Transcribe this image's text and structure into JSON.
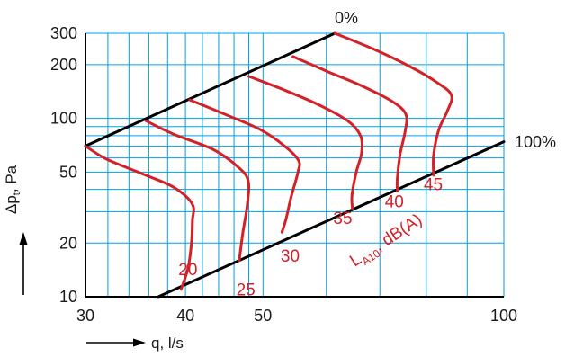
{
  "chart_data": {
    "type": "line",
    "title": "",
    "xlabel": "q, l/s",
    "ylabel_main": "Δp",
    "ylabel_sub": "t",
    "ylabel_unit": ", Pa",
    "log_x": true,
    "log_y": true,
    "xlim": [
      30,
      100
    ],
    "ylim": [
      10,
      300
    ],
    "grid": true,
    "x_ticks": [
      "30",
      "40",
      "50",
      "100"
    ],
    "x_tick_values": [
      30,
      40,
      50,
      100
    ],
    "y_ticks": [
      "10",
      "20",
      "50",
      "100",
      "200",
      "300"
    ],
    "y_tick_values": [
      10,
      20,
      50,
      100,
      200,
      300
    ],
    "x_grid": [
      30,
      32,
      34,
      36,
      38,
      40,
      42,
      44,
      46,
      48,
      50,
      60,
      70,
      80,
      90,
      100
    ],
    "y_grid": [
      10,
      20,
      30,
      40,
      50,
      60,
      70,
      80,
      90,
      100,
      200,
      300
    ],
    "boundaries": [
      {
        "label": "0%",
        "points": [
          [
            30,
            70
          ],
          [
            61.5,
            300
          ]
        ]
      },
      {
        "label": "100%",
        "points": [
          [
            37,
            10
          ],
          [
            100,
            74
          ]
        ]
      }
    ],
    "sound_label_main": "L",
    "sound_label_sub": "A10",
    "sound_label_rest": ", dB(A)",
    "series": [
      {
        "name": "20",
        "points": [
          [
            30,
            70
          ],
          [
            31.9,
            59
          ],
          [
            35.7,
            48
          ],
          [
            38.7,
            41
          ],
          [
            40.8,
            33
          ],
          [
            40.8,
            26.5
          ],
          [
            40.7,
            20
          ],
          [
            40.3,
            14.5
          ],
          [
            39.5,
            11
          ]
        ]
      },
      {
        "name": "25",
        "points": [
          [
            35.7,
            97
          ],
          [
            38.8,
            81
          ],
          [
            43.3,
            67
          ],
          [
            46.4,
            54
          ],
          [
            47.9,
            45
          ],
          [
            47.8,
            33
          ],
          [
            47.2,
            23
          ],
          [
            46.7,
            16
          ]
        ]
      },
      {
        "name": "30",
        "points": [
          [
            40.5,
            127
          ],
          [
            44.7,
            106
          ],
          [
            49.5,
            87
          ],
          [
            53.2,
            70
          ],
          [
            55.4,
            58
          ],
          [
            55.3,
            50
          ],
          [
            54.2,
            36
          ],
          [
            53.4,
            27
          ],
          [
            52.8,
            23
          ]
        ]
      },
      {
        "name": "35",
        "points": [
          [
            48,
            172
          ],
          [
            53,
            145
          ],
          [
            58.5,
            120
          ],
          [
            63.8,
            97
          ],
          [
            66.2,
            80
          ],
          [
            66.4,
            64
          ],
          [
            65.4,
            50
          ],
          [
            64.6,
            37
          ],
          [
            64.7,
            31
          ]
        ]
      },
      {
        "name": "40",
        "points": [
          [
            54.5,
            222
          ],
          [
            60.4,
            182
          ],
          [
            66.5,
            152
          ],
          [
            72.4,
            125
          ],
          [
            75.4,
            106
          ],
          [
            75.3,
            85
          ],
          [
            74.2,
            63
          ],
          [
            73.6,
            46
          ],
          [
            73.6,
            39
          ]
        ]
      },
      {
        "name": "45",
        "points": [
          [
            61.5,
            300
          ],
          [
            68.8,
            244
          ],
          [
            76.7,
            193
          ],
          [
            82.5,
            159
          ],
          [
            86,
            135
          ],
          [
            85,
            110
          ],
          [
            82.9,
            86
          ],
          [
            81.7,
            62
          ],
          [
            81.7,
            48
          ]
        ]
      }
    ],
    "colors": {
      "grid": "#00a0e3",
      "boundary": "#000000",
      "series": "#d42027",
      "axis": "#000000"
    }
  }
}
